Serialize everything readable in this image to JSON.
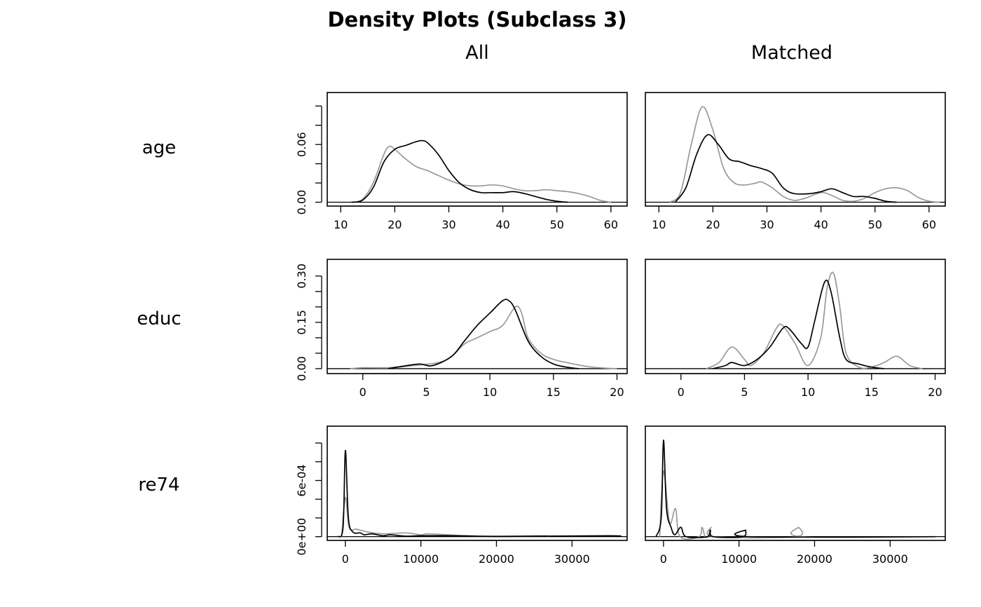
{
  "chart_data": {
    "type": "line",
    "title": "Density Plots (Subclass 3)",
    "column_titles": [
      "All",
      "Matched"
    ],
    "series_colors": {
      "treated": "#000000",
      "control": "#999999"
    },
    "rows": [
      {
        "label": "age",
        "xlim": [
          7.5,
          63
        ],
        "ylim": [
          -0.004,
          0.114
        ],
        "x_ticks": [
          10,
          20,
          30,
          40,
          50,
          60
        ],
        "x_tick_labels": [
          "10",
          "20",
          "30",
          "40",
          "50",
          "60"
        ],
        "y_ticks": [
          0,
          0.02,
          0.04,
          0.06,
          0.08,
          0.1
        ],
        "y_tick_labels": [
          "0.00",
          "",
          "",
          "0.06",
          "",
          ""
        ],
        "panels": [
          {
            "treated": [
              [
                12,
                0
              ],
              [
                14,
                0.002
              ],
              [
                16,
                0.015
              ],
              [
                18,
                0.042
              ],
              [
                20,
                0.055
              ],
              [
                22,
                0.059
              ],
              [
                24,
                0.063
              ],
              [
                25,
                0.064
              ],
              [
                26,
                0.062
              ],
              [
                28,
                0.05
              ],
              [
                30,
                0.033
              ],
              [
                32,
                0.02
              ],
              [
                34,
                0.013
              ],
              [
                36,
                0.01
              ],
              [
                38,
                0.01
              ],
              [
                40,
                0.01
              ],
              [
                42,
                0.011
              ],
              [
                44,
                0.009
              ],
              [
                46,
                0.006
              ],
              [
                48,
                0.003
              ],
              [
                50,
                0.001
              ],
              [
                52,
                0
              ]
            ],
            "control": [
              [
                12,
                0
              ],
              [
                14,
                0.003
              ],
              [
                16,
                0.02
              ],
              [
                18,
                0.05
              ],
              [
                19,
                0.058
              ],
              [
                20,
                0.055
              ],
              [
                22,
                0.045
              ],
              [
                24,
                0.037
              ],
              [
                26,
                0.033
              ],
              [
                28,
                0.028
              ],
              [
                30,
                0.023
              ],
              [
                32,
                0.019
              ],
              [
                34,
                0.017
              ],
              [
                36,
                0.017
              ],
              [
                38,
                0.018
              ],
              [
                40,
                0.017
              ],
              [
                42,
                0.014
              ],
              [
                44,
                0.012
              ],
              [
                46,
                0.012
              ],
              [
                48,
                0.013
              ],
              [
                50,
                0.012
              ],
              [
                52,
                0.011
              ],
              [
                54,
                0.009
              ],
              [
                56,
                0.006
              ],
              [
                58,
                0.002
              ],
              [
                60,
                0
              ]
            ]
          },
          {
            "treated": [
              [
                13,
                0
              ],
              [
                15,
                0.015
              ],
              [
                17,
                0.05
              ],
              [
                19,
                0.07
              ],
              [
                21,
                0.06
              ],
              [
                23,
                0.045
              ],
              [
                25,
                0.042
              ],
              [
                27,
                0.038
              ],
              [
                29,
                0.035
              ],
              [
                31,
                0.03
              ],
              [
                33,
                0.015
              ],
              [
                35,
                0.009
              ],
              [
                38,
                0.009
              ],
              [
                40,
                0.011
              ],
              [
                42,
                0.014
              ],
              [
                44,
                0.01
              ],
              [
                46,
                0.006
              ],
              [
                48,
                0.006
              ],
              [
                50,
                0.004
              ],
              [
                52,
                0.001
              ],
              [
                54,
                0
              ]
            ],
            "control": [
              [
                12,
                0
              ],
              [
                14,
                0.01
              ],
              [
                16,
                0.06
              ],
              [
                18,
                0.099
              ],
              [
                20,
                0.075
              ],
              [
                22,
                0.035
              ],
              [
                24,
                0.02
              ],
              [
                26,
                0.018
              ],
              [
                28,
                0.02
              ],
              [
                29,
                0.021
              ],
              [
                31,
                0.015
              ],
              [
                33,
                0.006
              ],
              [
                35,
                0.002
              ],
              [
                37,
                0.004
              ],
              [
                40,
                0.01
              ],
              [
                42,
                0.007
              ],
              [
                44,
                0.002
              ],
              [
                46,
                0.001
              ],
              [
                48,
                0.004
              ],
              [
                50,
                0.01
              ],
              [
                52,
                0.014
              ],
              [
                54,
                0.015
              ],
              [
                56,
                0.012
              ],
              [
                58,
                0.005
              ],
              [
                60,
                0.001
              ],
              [
                62,
                0
              ]
            ]
          }
        ]
      },
      {
        "label": "educ",
        "xlim": [
          -2.8,
          20.8
        ],
        "ylim": [
          -0.016,
          0.354
        ],
        "x_ticks": [
          0,
          5,
          10,
          15,
          20
        ],
        "x_tick_labels": [
          "0",
          "5",
          "10",
          "15",
          "20"
        ],
        "y_ticks": [
          0,
          0.05,
          0.1,
          0.15,
          0.2,
          0.25,
          0.3
        ],
        "y_tick_labels": [
          "0.00",
          "",
          "",
          "0.15",
          "",
          "",
          "0.30"
        ],
        "panels": [
          {
            "treated": [
              [
                2,
                0
              ],
              [
                3.5,
                0.01
              ],
              [
                4.5,
                0.015
              ],
              [
                5.5,
                0.01
              ],
              [
                7,
                0.04
              ],
              [
                8,
                0.09
              ],
              [
                9,
                0.14
              ],
              [
                10,
                0.18
              ],
              [
                11,
                0.22
              ],
              [
                11.5,
                0.22
              ],
              [
                12,
                0.19
              ],
              [
                13,
                0.09
              ],
              [
                14,
                0.04
              ],
              [
                15,
                0.015
              ],
              [
                16,
                0.005
              ],
              [
                17,
                0
              ]
            ],
            "control": [
              [
                -1,
                0
              ],
              [
                0,
                0.003
              ],
              [
                2,
                0.003
              ],
              [
                4,
                0.01
              ],
              [
                6,
                0.02
              ],
              [
                7,
                0.04
              ],
              [
                8,
                0.08
              ],
              [
                9,
                0.1
              ],
              [
                10,
                0.12
              ],
              [
                11,
                0.14
              ],
              [
                12,
                0.2
              ],
              [
                12.5,
                0.18
              ],
              [
                13,
                0.1
              ],
              [
                14,
                0.05
              ],
              [
                15,
                0.03
              ],
              [
                16,
                0.02
              ],
              [
                18,
                0.005
              ],
              [
                20,
                0
              ]
            ]
          },
          {
            "treated": [
              [
                2.5,
                0
              ],
              [
                3.5,
                0.01
              ],
              [
                4,
                0.02
              ],
              [
                5,
                0.01
              ],
              [
                6,
                0.03
              ],
              [
                7,
                0.07
              ],
              [
                8,
                0.13
              ],
              [
                8.5,
                0.13
              ],
              [
                9.5,
                0.08
              ],
              [
                10,
                0.07
              ],
              [
                10.5,
                0.15
              ],
              [
                11.3,
                0.28
              ],
              [
                11.8,
                0.25
              ],
              [
                12.5,
                0.1
              ],
              [
                13,
                0.03
              ],
              [
                14,
                0.015
              ],
              [
                15,
                0.005
              ],
              [
                16,
                0
              ]
            ],
            "control": [
              [
                2,
                0
              ],
              [
                3,
                0.02
              ],
              [
                4,
                0.07
              ],
              [
                5,
                0.03
              ],
              [
                5.5,
                0.01
              ],
              [
                6.5,
                0.05
              ],
              [
                7.5,
                0.13
              ],
              [
                8,
                0.14
              ],
              [
                9,
                0.08
              ],
              [
                10,
                0.01
              ],
              [
                11,
                0.1
              ],
              [
                11.5,
                0.26
              ],
              [
                12,
                0.31
              ],
              [
                12.5,
                0.2
              ],
              [
                13,
                0.05
              ],
              [
                14,
                0.005
              ],
              [
                15,
                0.005
              ],
              [
                16,
                0.02
              ],
              [
                17,
                0.04
              ],
              [
                18,
                0.01
              ],
              [
                19,
                0
              ]
            ]
          }
        ]
      },
      {
        "label": "re74",
        "xlim": [
          -2400,
          37300
        ],
        "ylim": [
          -4e-05,
          0.00118
        ],
        "x_ticks": [
          0,
          10000,
          20000,
          30000
        ],
        "x_tick_labels": [
          "0",
          "10000",
          "20000",
          "30000"
        ],
        "y_ticks": [
          0,
          0.0002,
          0.0004,
          0.0006,
          0.0008,
          0.001
        ],
        "y_tick_labels": [
          "0e+00",
          "",
          "",
          "6e-04",
          "",
          ""
        ],
        "panels": [
          {
            "treated": [
              [
                -1000,
                0
              ],
              [
                -300,
                0.0001
              ],
              [
                0,
                0.00092
              ],
              [
                400,
                0.0002
              ],
              [
                1000,
                5e-05
              ],
              [
                2000,
                4e-05
              ],
              [
                2500,
                2e-05
              ],
              [
                3500,
                3e-05
              ],
              [
                5000,
                1e-05
              ],
              [
                6000,
                2e-05
              ],
              [
                8000,
                5e-06
              ],
              [
                10000,
                1e-05
              ],
              [
                14000,
                1e-05
              ],
              [
                20000,
                2e-06
              ],
              [
                35000,
                1e-05
              ],
              [
                36000,
                0
              ]
            ],
            "control": [
              [
                -500,
                0
              ],
              [
                0,
                0.00042
              ],
              [
                500,
                0.0001
              ],
              [
                1500,
                8e-05
              ],
              [
                3000,
                5e-05
              ],
              [
                5000,
                3e-05
              ],
              [
                8000,
                4e-05
              ],
              [
                10000,
                2e-05
              ],
              [
                11000,
                3e-05
              ],
              [
                15000,
                1.5e-05
              ],
              [
                20000,
                5e-06
              ],
              [
                26000,
                1e-05
              ],
              [
                27000,
                0
              ]
            ]
          },
          {
            "treated": [
              [
                -1000,
                0
              ],
              [
                -300,
                0.0002
              ],
              [
                0,
                0.00103
              ],
              [
                400,
                0.0003
              ],
              [
                1000,
                0.0001
              ],
              [
                1500,
                2e-05
              ],
              [
                2300,
                0.0001
              ],
              [
                3000,
                0
              ],
              [
                5800,
                0
              ],
              [
                6200,
                7e-05
              ],
              [
                6600,
                0
              ],
              [
                10500,
                0
              ],
              [
                10900,
                7e-05
              ],
              [
                11400,
                0
              ],
              [
                36000,
                0
              ]
            ],
            "control": [
              [
                -500,
                0
              ],
              [
                0,
                0.0007
              ],
              [
                800,
                0.00015
              ],
              [
                1600,
                0.0003
              ],
              [
                2200,
                0
              ],
              [
                4700,
                0
              ],
              [
                5100,
                0.0001
              ],
              [
                5500,
                0
              ],
              [
                5900,
                0
              ],
              [
                6300,
                0.0001
              ],
              [
                6700,
                0
              ],
              [
                17500,
                0
              ],
              [
                17900,
                0.0001
              ],
              [
                18300,
                0
              ],
              [
                36000,
                0
              ]
            ]
          }
        ]
      }
    ]
  }
}
